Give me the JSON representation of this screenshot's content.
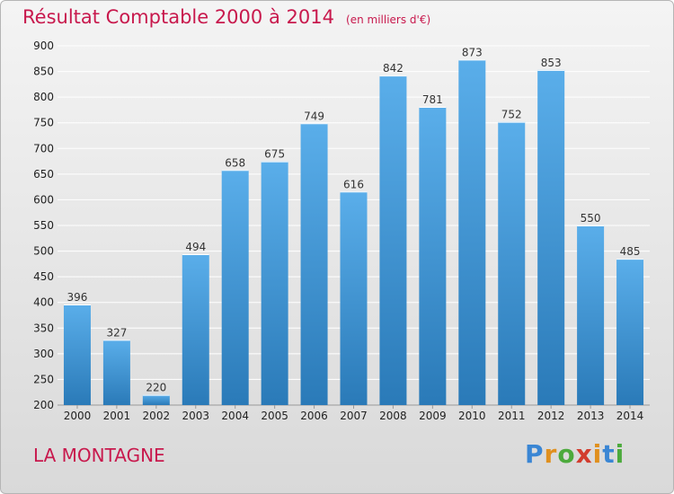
{
  "header": {
    "title": "Résultat Comptable 2000 à 2014",
    "subtitle": "(en milliers d'€)"
  },
  "footer": {
    "commune": "LA MONTAGNE",
    "logo": "Proxiti"
  },
  "colors": {
    "title": "#c8194d",
    "bar_top": "#5aaeea",
    "bar_bottom": "#2a7ab8",
    "grid": "#ffffff"
  },
  "chart_data": {
    "type": "bar",
    "title": "Résultat Comptable 2000 à 2014",
    "xlabel": "",
    "ylabel": "",
    "categories": [
      "2000",
      "2001",
      "2002",
      "2003",
      "2004",
      "2005",
      "2006",
      "2007",
      "2008",
      "2009",
      "2010",
      "2011",
      "2012",
      "2013",
      "2014"
    ],
    "values": [
      396,
      327,
      220,
      494,
      658,
      675,
      749,
      616,
      842,
      781,
      873,
      752,
      853,
      550,
      485
    ],
    "ylim": [
      200,
      900
    ],
    "yticks": [
      200,
      250,
      300,
      350,
      400,
      450,
      500,
      550,
      600,
      650,
      700,
      750,
      800,
      850,
      900
    ],
    "grid": true,
    "legend": "none"
  }
}
